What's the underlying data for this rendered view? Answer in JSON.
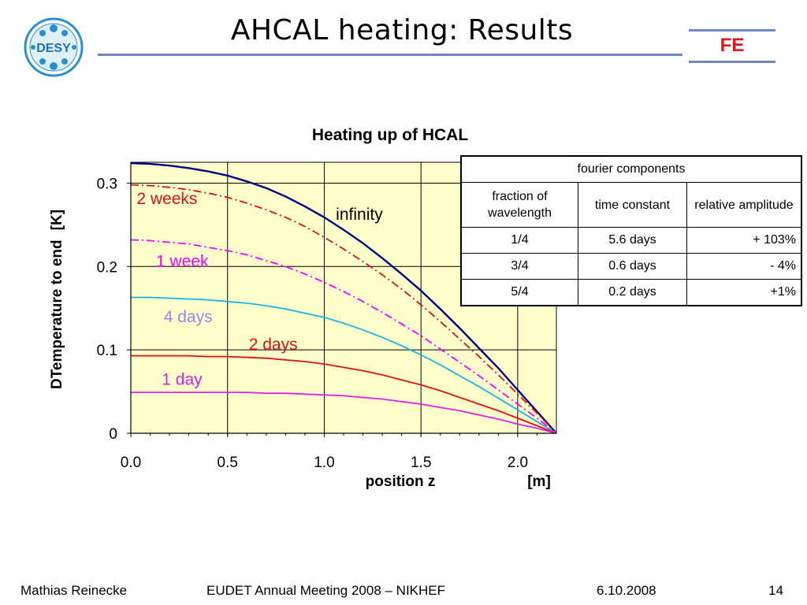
{
  "slide": {
    "title": "AHCAL heating: Results",
    "logo_text": "DESY",
    "corner_label": "FE"
  },
  "chart_data": {
    "type": "line",
    "title": "Heating up of HCAL",
    "xlabel": "position z",
    "xunit": "[m]",
    "ylabel": "DTemperature to end",
    "yunit": "[K]",
    "xlim": [
      0,
      2.2
    ],
    "ylim": [
      0,
      0.325
    ],
    "x_ticks": [
      {
        "value": 0.0,
        "label": "0.0"
      },
      {
        "value": 0.5,
        "label": "0.5"
      },
      {
        "value": 1.0,
        "label": "1.0"
      },
      {
        "value": 1.5,
        "label": "1.5"
      },
      {
        "value": 2.0,
        "label": "2.0"
      }
    ],
    "y_ticks": [
      {
        "value": 0,
        "label": "0"
      },
      {
        "value": 0.1,
        "label": "0.1"
      },
      {
        "value": 0.2,
        "label": "0.2"
      },
      {
        "value": 0.3,
        "label": "0.3"
      }
    ],
    "x_gridlines": [
      0.5,
      1.0,
      1.5,
      2.0
    ],
    "y_gridlines": [
      0.1,
      0.2,
      0.3
    ],
    "grid": true,
    "plot_background": "#ffffcc",
    "series": [
      {
        "name": "infinity",
        "color": "#000080",
        "style": "solid",
        "x": [
          0,
          0.1,
          0.2,
          0.3,
          0.4,
          0.5,
          0.6,
          0.7,
          0.8,
          0.9,
          1.0,
          1.1,
          1.2,
          1.3,
          1.4,
          1.5,
          1.6,
          1.7,
          1.8,
          1.9,
          2.0,
          2.1,
          2.2
        ],
        "y": [
          0.324,
          0.323,
          0.321,
          0.318,
          0.314,
          0.309,
          0.302,
          0.294,
          0.284,
          0.272,
          0.259,
          0.244,
          0.228,
          0.21,
          0.191,
          0.171,
          0.149,
          0.126,
          0.102,
          0.078,
          0.052,
          0.026,
          0
        ]
      },
      {
        "name": "2 weeks",
        "color": "#e01010",
        "style": "dash-dot",
        "x": [
          0,
          0.1,
          0.2,
          0.3,
          0.4,
          0.5,
          0.6,
          0.7,
          0.8,
          0.9,
          1.0,
          1.1,
          1.2,
          1.3,
          1.4,
          1.5,
          1.6,
          1.7,
          1.8,
          1.9,
          2.0,
          2.1,
          2.2
        ],
        "y": [
          0.298,
          0.297,
          0.295,
          0.292,
          0.288,
          0.283,
          0.276,
          0.268,
          0.259,
          0.248,
          0.235,
          0.221,
          0.206,
          0.19,
          0.173,
          0.154,
          0.134,
          0.113,
          0.092,
          0.07,
          0.047,
          0.024,
          0
        ]
      },
      {
        "name": "1 week",
        "color": "#ff00ff",
        "style": "dash-dot",
        "x": [
          0,
          0.1,
          0.2,
          0.3,
          0.4,
          0.5,
          0.6,
          0.7,
          0.8,
          0.9,
          1.0,
          1.1,
          1.2,
          1.3,
          1.4,
          1.5,
          1.6,
          1.7,
          1.8,
          1.9,
          2.0,
          2.1,
          2.2
        ],
        "y": [
          0.232,
          0.231,
          0.229,
          0.227,
          0.223,
          0.219,
          0.214,
          0.207,
          0.2,
          0.191,
          0.181,
          0.17,
          0.158,
          0.145,
          0.131,
          0.117,
          0.101,
          0.085,
          0.069,
          0.052,
          0.035,
          0.018,
          0
        ]
      },
      {
        "name": "4 days",
        "color": "#17b3e6",
        "style": "solid",
        "x": [
          0,
          0.1,
          0.2,
          0.3,
          0.4,
          0.5,
          0.6,
          0.7,
          0.8,
          0.9,
          1.0,
          1.1,
          1.2,
          1.3,
          1.4,
          1.5,
          1.6,
          1.7,
          1.8,
          1.9,
          2.0,
          2.1,
          2.2
        ],
        "y": [
          0.163,
          0.163,
          0.162,
          0.161,
          0.16,
          0.158,
          0.156,
          0.153,
          0.149,
          0.144,
          0.139,
          0.132,
          0.124,
          0.115,
          0.105,
          0.094,
          0.082,
          0.069,
          0.056,
          0.042,
          0.028,
          0.014,
          0
        ]
      },
      {
        "name": "2 days",
        "color": "#e01010",
        "style": "solid",
        "x": [
          0,
          0.1,
          0.2,
          0.3,
          0.4,
          0.5,
          0.6,
          0.7,
          0.8,
          0.9,
          1.0,
          1.1,
          1.2,
          1.3,
          1.4,
          1.5,
          1.6,
          1.7,
          1.8,
          1.9,
          2.0,
          2.1,
          2.2
        ],
        "y": [
          0.093,
          0.093,
          0.093,
          0.093,
          0.092,
          0.092,
          0.091,
          0.09,
          0.088,
          0.086,
          0.083,
          0.079,
          0.075,
          0.07,
          0.064,
          0.058,
          0.051,
          0.043,
          0.035,
          0.027,
          0.018,
          0.009,
          0
        ]
      },
      {
        "name": "1 day",
        "color": "#e020e0",
        "style": "solid",
        "x": [
          0,
          0.1,
          0.2,
          0.3,
          0.4,
          0.5,
          0.6,
          0.7,
          0.8,
          0.9,
          1.0,
          1.1,
          1.2,
          1.3,
          1.4,
          1.5,
          1.6,
          1.7,
          1.8,
          1.9,
          2.0,
          2.1,
          2.2
        ],
        "y": [
          0.049,
          0.049,
          0.049,
          0.049,
          0.049,
          0.049,
          0.049,
          0.048,
          0.048,
          0.047,
          0.046,
          0.045,
          0.043,
          0.041,
          0.038,
          0.035,
          0.031,
          0.027,
          0.022,
          0.017,
          0.011,
          0.006,
          0
        ]
      }
    ],
    "curve_labels": [
      {
        "text": "2 weeks",
        "color": "#e01010",
        "x": 0.03,
        "y": 0.275
      },
      {
        "text": "infinity",
        "color": "#000000",
        "x": 1.06,
        "y": 0.256
      },
      {
        "text": "1 week",
        "color": "#ff00ff",
        "x": 0.13,
        "y": 0.2
      },
      {
        "text": "4 days",
        "color": "#8b8bef",
        "x": 0.17,
        "y": 0.133
      },
      {
        "text": "2 days",
        "color": "#e01010",
        "x": 0.61,
        "y": 0.1
      },
      {
        "text": "1 day",
        "color": "#e020e0",
        "x": 0.16,
        "y": 0.058
      }
    ],
    "table": {
      "title": "fourier components",
      "columns": [
        "fraction of wavelength",
        "time constant",
        "relative amplitude"
      ],
      "rows": [
        [
          "1/4",
          "5.6 days",
          "+ 103%"
        ],
        [
          "3/4",
          "0.6 days",
          "- 4%"
        ],
        [
          "5/4",
          "0.2 days",
          "+1%"
        ]
      ]
    }
  },
  "footer": {
    "author": "Mathias Reinecke",
    "event": "EUDET Annual Meeting 2008 – NIKHEF",
    "date": "6.10.2008",
    "page": "14"
  }
}
